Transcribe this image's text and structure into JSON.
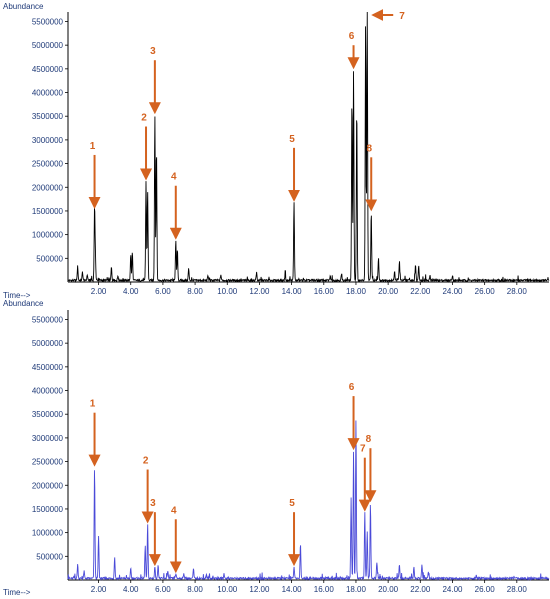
{
  "colors": {
    "axis": "#1f3a78",
    "annotation": "#d4621f"
  },
  "chart_data": [
    {
      "type": "line",
      "ylabel": "Abundance",
      "xlabel": "Time-->",
      "line_color": "#000000",
      "xlim": [
        0.1,
        30.0
      ],
      "ylim": [
        0,
        5700000
      ],
      "x_ticks": [
        "2.00",
        "4.00",
        "6.00",
        "8.00",
        "10.00",
        "12.00",
        "14.00",
        "16.00",
        "18.00",
        "20.00",
        "22.00",
        "24.00",
        "26.00",
        "28.00"
      ],
      "y_ticks": [
        "500000",
        "1000000",
        "1500000",
        "2000000",
        "2500000",
        "3000000",
        "3500000",
        "4000000",
        "4500000",
        "5000000",
        "5500000"
      ],
      "peaks": [
        {
          "x": 0.7,
          "y": 300000
        },
        {
          "x": 1.0,
          "y": 180000
        },
        {
          "x": 1.3,
          "y": 120000
        },
        {
          "x": 1.75,
          "y": 1500000
        },
        {
          "x": 1.8,
          "y": 520000
        },
        {
          "x": 2.8,
          "y": 280000
        },
        {
          "x": 3.2,
          "y": 100000
        },
        {
          "x": 4.0,
          "y": 550000
        },
        {
          "x": 4.1,
          "y": 600000
        },
        {
          "x": 4.95,
          "y": 2100000
        },
        {
          "x": 5.05,
          "y": 1900000
        },
        {
          "x": 5.5,
          "y": 3500000
        },
        {
          "x": 5.6,
          "y": 2800000
        },
        {
          "x": 6.8,
          "y": 850000
        },
        {
          "x": 6.9,
          "y": 650000
        },
        {
          "x": 7.6,
          "y": 250000
        },
        {
          "x": 8.8,
          "y": 100000
        },
        {
          "x": 9.6,
          "y": 120000
        },
        {
          "x": 11.8,
          "y": 100000
        },
        {
          "x": 13.6,
          "y": 110000
        },
        {
          "x": 14.15,
          "y": 1650000
        },
        {
          "x": 16.4,
          "y": 90000
        },
        {
          "x": 17.1,
          "y": 120000
        },
        {
          "x": 17.75,
          "y": 3850000
        },
        {
          "x": 17.85,
          "y": 4450000
        },
        {
          "x": 18.05,
          "y": 3650000
        },
        {
          "x": 18.6,
          "y": 5450000
        },
        {
          "x": 18.7,
          "y": 5700000
        },
        {
          "x": 18.95,
          "y": 1450000
        },
        {
          "x": 19.4,
          "y": 480000
        },
        {
          "x": 20.4,
          "y": 200000
        },
        {
          "x": 20.7,
          "y": 380000
        },
        {
          "x": 21.7,
          "y": 340000
        },
        {
          "x": 21.9,
          "y": 330000
        },
        {
          "x": 22.6,
          "y": 100000
        },
        {
          "x": 24.0,
          "y": 110000
        }
      ],
      "annotations": [
        {
          "label": "1",
          "x": 1.75,
          "y": 1500000,
          "dir": "down",
          "len": 52
        },
        {
          "label": "2",
          "x": 4.95,
          "y": 2100000,
          "dir": "down",
          "len": 52
        },
        {
          "label": "3",
          "x": 5.5,
          "y": 3500000,
          "dir": "down",
          "len": 52
        },
        {
          "label": "4",
          "x": 6.8,
          "y": 850000,
          "dir": "down",
          "len": 52
        },
        {
          "label": "5",
          "x": 14.15,
          "y": 1650000,
          "dir": "down",
          "len": 52
        },
        {
          "label": "6",
          "x": 17.85,
          "y": 4450000,
          "dir": "down",
          "len": 22
        },
        {
          "label": "7",
          "x": 18.7,
          "y": 5700000,
          "dir": "left",
          "len": 22
        },
        {
          "label": "8",
          "x": 18.95,
          "y": 1450000,
          "dir": "down",
          "len": 52
        }
      ]
    },
    {
      "type": "line",
      "ylabel": "Abundance",
      "xlabel": "Time-->",
      "line_color": "#4a4ad8",
      "xlim": [
        0.1,
        30.0
      ],
      "ylim": [
        0,
        5700000
      ],
      "x_ticks": [
        "2.00",
        "4.00",
        "6.00",
        "8.00",
        "10.00",
        "12.00",
        "14.00",
        "16.00",
        "18.00",
        "20.00",
        "22.00",
        "24.00",
        "26.00",
        "28.00"
      ],
      "y_ticks": [
        "500000",
        "1000000",
        "1500000",
        "2000000",
        "2500000",
        "3000000",
        "3500000",
        "4000000",
        "4500000",
        "5000000",
        "5500000"
      ],
      "peaks": [
        {
          "x": 0.7,
          "y": 300000
        },
        {
          "x": 1.1,
          "y": 150000
        },
        {
          "x": 1.75,
          "y": 2350000
        },
        {
          "x": 2.0,
          "y": 900000
        },
        {
          "x": 3.0,
          "y": 450000
        },
        {
          "x": 4.0,
          "y": 200000
        },
        {
          "x": 4.9,
          "y": 700000
        },
        {
          "x": 5.05,
          "y": 1150000
        },
        {
          "x": 5.5,
          "y": 250000
        },
        {
          "x": 5.7,
          "y": 300000
        },
        {
          "x": 6.3,
          "y": 150000
        },
        {
          "x": 6.8,
          "y": 100000
        },
        {
          "x": 7.3,
          "y": 110000
        },
        {
          "x": 7.9,
          "y": 200000
        },
        {
          "x": 8.7,
          "y": 80000
        },
        {
          "x": 9.8,
          "y": 100000
        },
        {
          "x": 14.15,
          "y": 250000
        },
        {
          "x": 14.55,
          "y": 750000
        },
        {
          "x": 17.7,
          "y": 1700000
        },
        {
          "x": 17.85,
          "y": 2700000
        },
        {
          "x": 18.0,
          "y": 3350000
        },
        {
          "x": 18.55,
          "y": 1400000
        },
        {
          "x": 18.7,
          "y": 1000000
        },
        {
          "x": 18.9,
          "y": 1600000
        },
        {
          "x": 19.3,
          "y": 350000
        },
        {
          "x": 20.7,
          "y": 300000
        },
        {
          "x": 21.6,
          "y": 250000
        },
        {
          "x": 22.1,
          "y": 280000
        },
        {
          "x": 22.5,
          "y": 120000
        }
      ],
      "annotations": [
        {
          "label": "1",
          "x": 1.75,
          "y": 2350000,
          "dir": "down",
          "len": 52
        },
        {
          "label": "2",
          "x": 5.05,
          "y": 1150000,
          "dir": "down",
          "len": 52
        },
        {
          "label": "3",
          "x": 5.5,
          "y": 250000,
          "dir": "down",
          "len": 52
        },
        {
          "label": "4",
          "x": 6.8,
          "y": 100000,
          "dir": "down",
          "len": 52
        },
        {
          "label": "5",
          "x": 14.15,
          "y": 250000,
          "dir": "down",
          "len": 52
        },
        {
          "label": "6",
          "x": 17.85,
          "y": 2700000,
          "dir": "down",
          "len": 52
        },
        {
          "label": "7",
          "x": 18.55,
          "y": 1400000,
          "dir": "down",
          "len": 52
        },
        {
          "label": "8",
          "x": 18.9,
          "y": 1600000,
          "dir": "down",
          "len": 52
        }
      ]
    }
  ]
}
